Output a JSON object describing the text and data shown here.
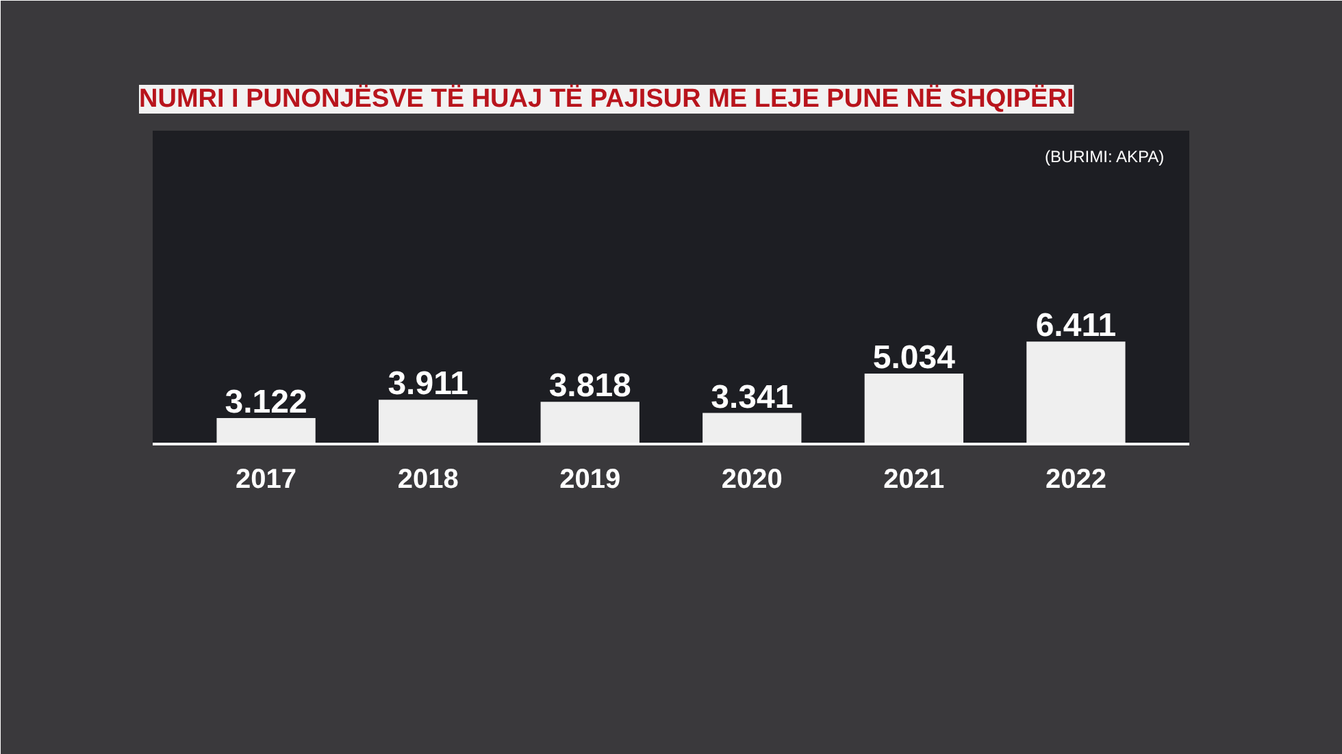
{
  "chart_data": {
    "type": "bar",
    "title": "NUMRI I PUNONJËSVE TË HUAJ TË PAJISUR ME LEJE PUNE NË SHQIPËRI",
    "categories": [
      "2017",
      "2018",
      "2019",
      "2020",
      "2021",
      "2022"
    ],
    "values": [
      3122,
      3911,
      3818,
      3341,
      5034,
      6411
    ],
    "value_labels": [
      "3.122",
      "3.911",
      "3.818",
      "3.341",
      "5.034",
      "6.411"
    ],
    "color": "#efefef",
    "ylim": [
      2000,
      15500
    ],
    "tick_labels": "x",
    "grid": false,
    "annotations": [
      "(BURIMI: AKPA)"
    ]
  }
}
